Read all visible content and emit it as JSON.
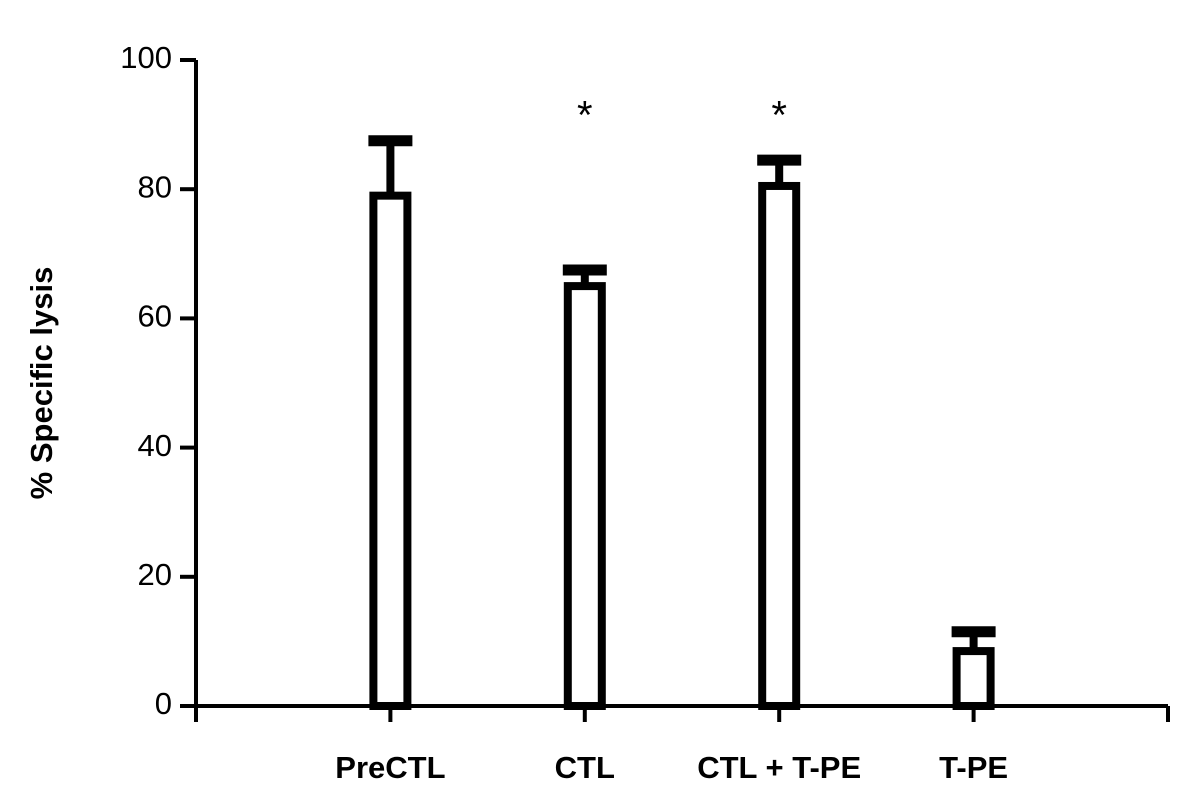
{
  "chart_data": {
    "type": "bar",
    "ylabel": "% Specific lysis",
    "categories": [
      "PreCTL",
      "CTL",
      "CTL + T-PE",
      "T-PE"
    ],
    "values": [
      79,
      65,
      80.5,
      8.5
    ],
    "errors": [
      8.5,
      2.5,
      4,
      3
    ],
    "significance": [
      null,
      "*",
      "*",
      null
    ],
    "color": "#ffffff",
    "ylim": [
      0,
      100
    ],
    "yticks": [
      0,
      20,
      40,
      60,
      80,
      100
    ],
    "grid": false
  }
}
